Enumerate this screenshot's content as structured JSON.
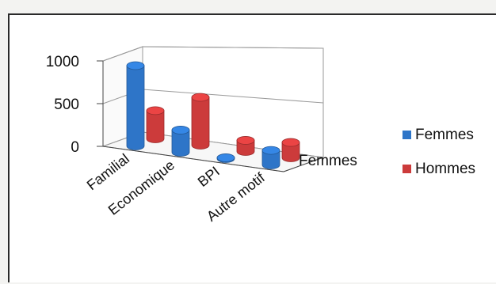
{
  "chart_data": {
    "type": "bar",
    "style": "3d-cylinder",
    "categories": [
      "Familial",
      "Economique",
      "BPI",
      "Autre motif"
    ],
    "series": [
      {
        "name": "Femmes",
        "values": [
          940,
          260,
          10,
          170
        ],
        "color": "#2e75c8"
      },
      {
        "name": "Hommes",
        "values": [
          330,
          560,
          130,
          180
        ],
        "color": "#cc3b3b"
      }
    ],
    "ylim": [
      0,
      1000
    ],
    "yticks": [
      "1000",
      "500",
      "0"
    ],
    "depth_axis_label": "Femmes",
    "legend": {
      "position": "right",
      "items": [
        "Femmes",
        "Hommes"
      ]
    },
    "grid": true
  }
}
